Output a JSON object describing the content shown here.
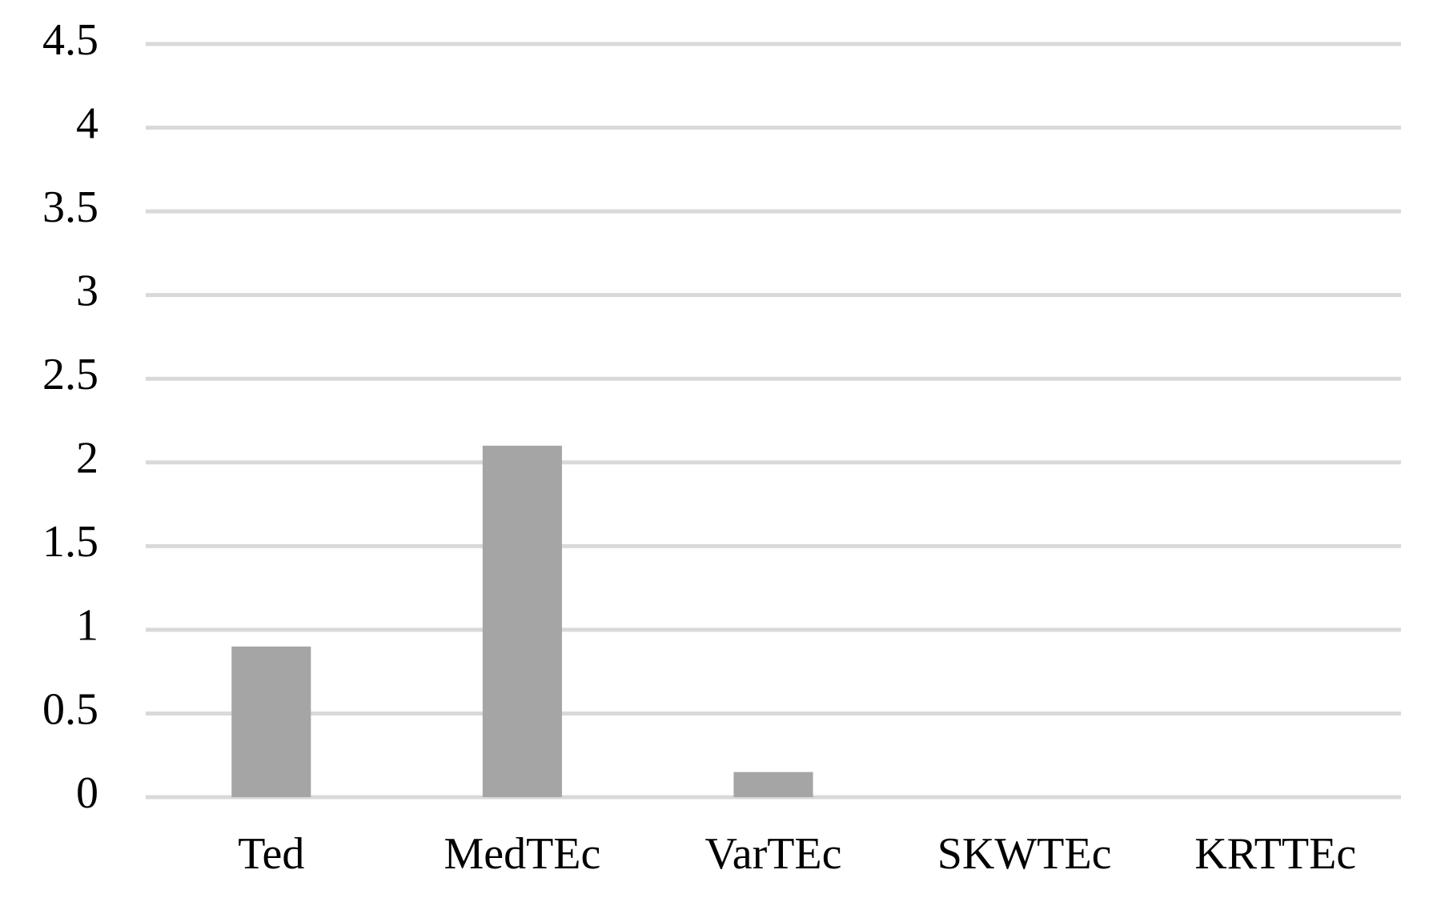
{
  "chart_data": {
    "type": "bar",
    "categories": [
      "Ted",
      "MedTEc",
      "VarTEc",
      "SKWTEc",
      "KRTTEc"
    ],
    "values": [
      0.9,
      2.1,
      0.15,
      0,
      0
    ],
    "color": "#a5a5a5",
    "ylim": [
      0,
      4.5
    ],
    "yticks": [
      0,
      0.5,
      1,
      1.5,
      2,
      2.5,
      3,
      3.5,
      4,
      4.5
    ],
    "grid": true
  }
}
